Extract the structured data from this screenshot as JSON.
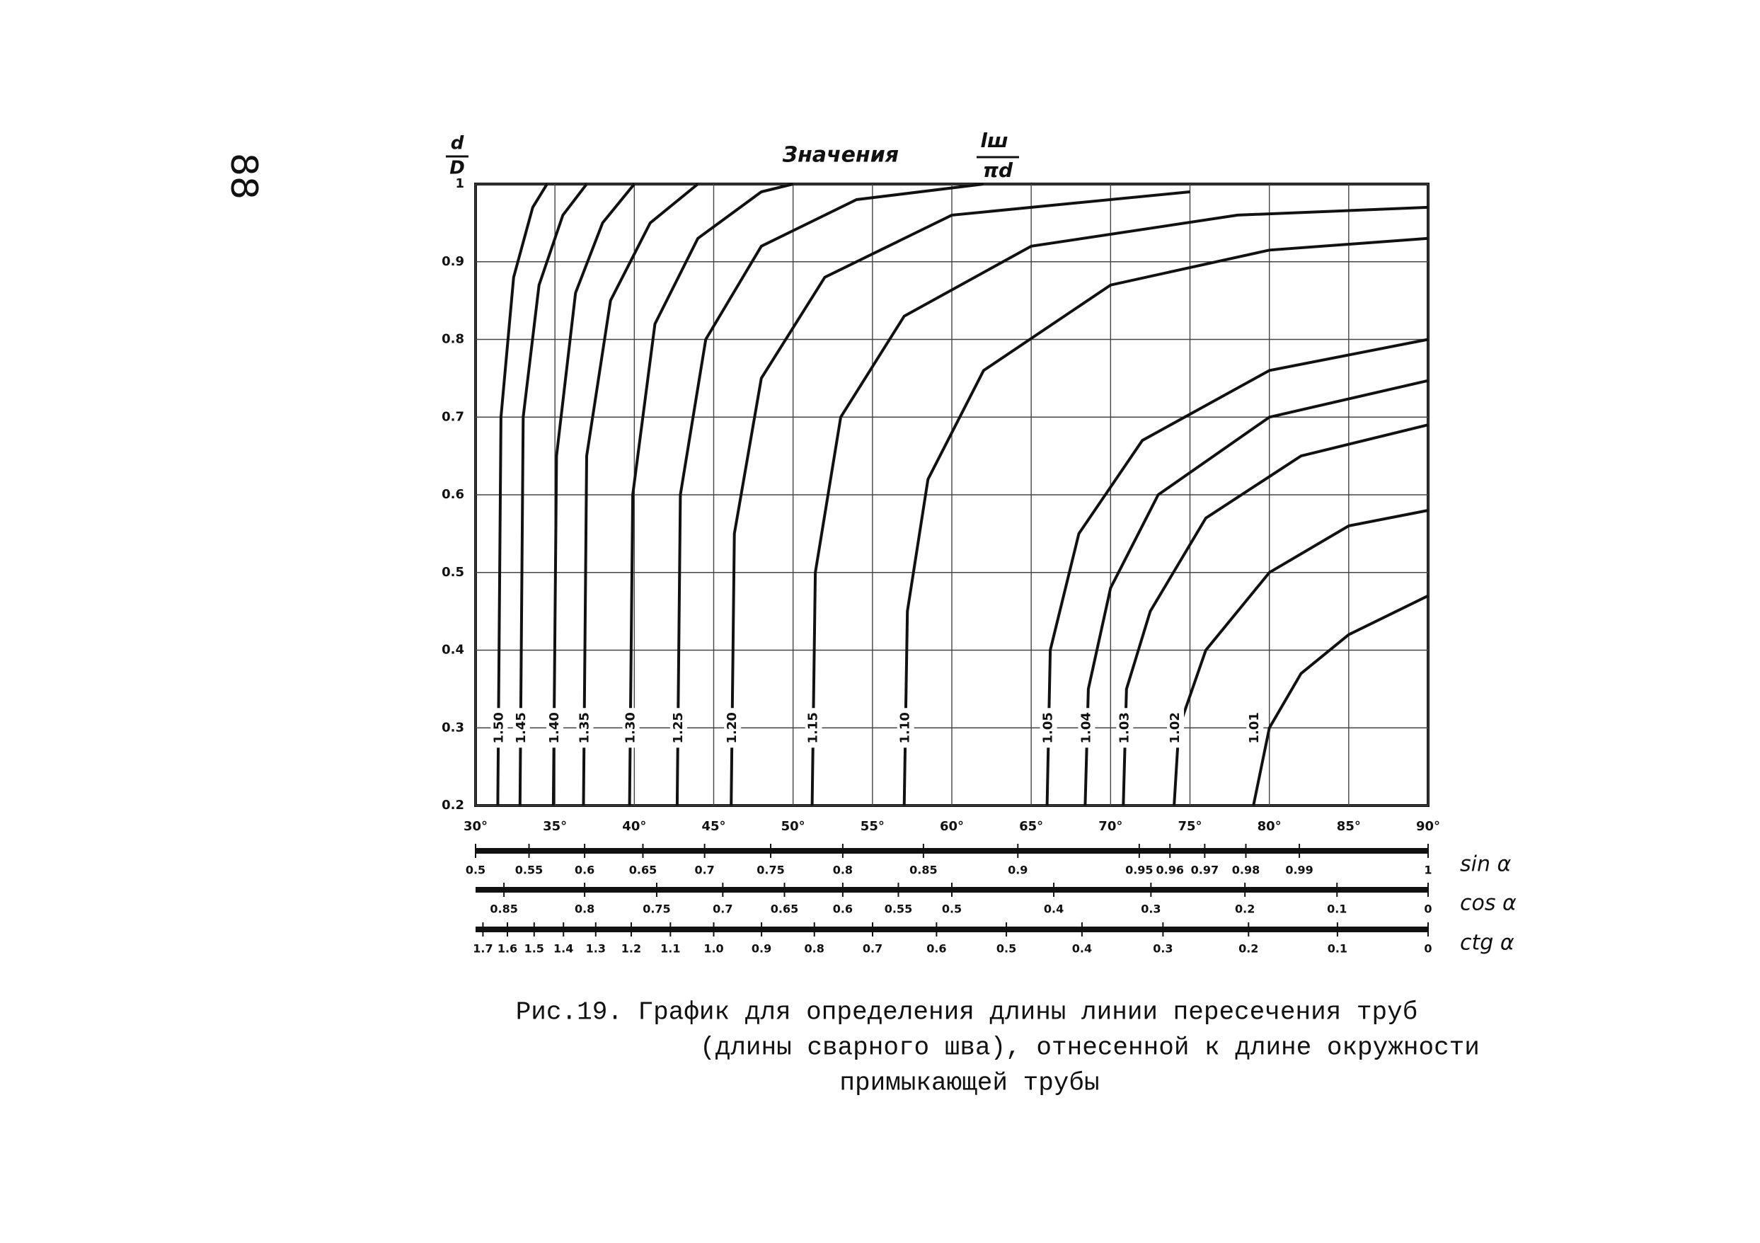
{
  "page_number": "88",
  "chart_data": {
    "type": "line",
    "title": "Значения",
    "title_fraction_top": "lш",
    "title_fraction_bottom": "πd",
    "ylabel_top": "d",
    "ylabel_bottom": "D",
    "xlim": [
      30,
      90
    ],
    "ylim": [
      0.2,
      1
    ],
    "xticks": [
      {
        "value": 30,
        "label": "30°"
      },
      {
        "value": 35,
        "label": "35°"
      },
      {
        "value": 40,
        "label": "40°"
      },
      {
        "value": 45,
        "label": "45°"
      },
      {
        "value": 50,
        "label": "50°"
      },
      {
        "value": 55,
        "label": "55°"
      },
      {
        "value": 60,
        "label": "60°"
      },
      {
        "value": 65,
        "label": "65°"
      },
      {
        "value": 70,
        "label": "70°"
      },
      {
        "value": 75,
        "label": "75°"
      },
      {
        "value": 80,
        "label": "80°"
      },
      {
        "value": 85,
        "label": "85°"
      },
      {
        "value": 90,
        "label": "90°"
      }
    ],
    "yticks": [
      0.2,
      0.3,
      0.4,
      0.5,
      0.6,
      0.7,
      0.8,
      0.9,
      1
    ],
    "grid": true,
    "color": "#111111",
    "series": [
      {
        "name": "1.50",
        "x": [
          31.4,
          31.6,
          32.4,
          33.6,
          34.5
        ],
        "values": [
          0.2,
          0.7,
          0.88,
          0.97,
          1
        ]
      },
      {
        "name": "1.45",
        "x": [
          32.8,
          33,
          34,
          35.5,
          37
        ],
        "values": [
          0.2,
          0.7,
          0.87,
          0.96,
          1
        ]
      },
      {
        "name": "1.40",
        "x": [
          34.9,
          35.1,
          36.3,
          38,
          40
        ],
        "values": [
          0.2,
          0.65,
          0.86,
          0.95,
          1
        ]
      },
      {
        "name": "1.35",
        "x": [
          36.8,
          37,
          38.5,
          41,
          44
        ],
        "values": [
          0.2,
          0.65,
          0.85,
          0.95,
          1
        ]
      },
      {
        "name": "1.30",
        "x": [
          39.7,
          39.9,
          41.3,
          44,
          48,
          50
        ],
        "values": [
          0.2,
          0.6,
          0.82,
          0.93,
          0.99,
          1
        ]
      },
      {
        "name": "1.25",
        "x": [
          42.7,
          42.9,
          44.5,
          48,
          54,
          62
        ],
        "values": [
          0.2,
          0.6,
          0.8,
          0.92,
          0.98,
          1
        ]
      },
      {
        "name": "1.20",
        "x": [
          46.1,
          46.3,
          48,
          52,
          60,
          75
        ],
        "values": [
          0.2,
          0.55,
          0.75,
          0.88,
          0.96,
          0.99
        ]
      },
      {
        "name": "1.15",
        "x": [
          51.2,
          51.4,
          53,
          57,
          65,
          78,
          90
        ],
        "values": [
          0.2,
          0.5,
          0.7,
          0.83,
          0.92,
          0.96,
          0.97
        ]
      },
      {
        "name": "1.10",
        "x": [
          57,
          57.2,
          58.5,
          62,
          70,
          80,
          90
        ],
        "values": [
          0.2,
          0.45,
          0.62,
          0.76,
          0.87,
          0.915,
          0.93
        ]
      },
      {
        "name": "1.05",
        "x": [
          66,
          66.2,
          68,
          72,
          80,
          90
        ],
        "values": [
          0.2,
          0.4,
          0.55,
          0.67,
          0.76,
          0.8
        ]
      },
      {
        "name": "1.04",
        "x": [
          68.4,
          68.6,
          70,
          73,
          80,
          90
        ],
        "values": [
          0.2,
          0.35,
          0.48,
          0.6,
          0.7,
          0.747
        ]
      },
      {
        "name": "1.03",
        "x": [
          70.8,
          71,
          72.5,
          76,
          82,
          90
        ],
        "values": [
          0.2,
          0.35,
          0.45,
          0.57,
          0.65,
          0.69
        ]
      },
      {
        "name": "1.02",
        "x": [
          74,
          74.3,
          76,
          80,
          85,
          90
        ],
        "values": [
          0.2,
          0.3,
          0.4,
          0.5,
          0.56,
          0.58
        ]
      },
      {
        "name": "1.01",
        "x": [
          79,
          80,
          82,
          85,
          90
        ],
        "values": [
          0.2,
          0.3,
          0.37,
          0.42,
          0.47
        ]
      }
    ],
    "scales": [
      {
        "name": "sin α",
        "func": "sin",
        "ticks": [
          0.5,
          0.55,
          0.6,
          0.65,
          0.7,
          0.75,
          0.8,
          0.85,
          0.9,
          0.95,
          0.96,
          0.97,
          0.98,
          0.99,
          1
        ]
      },
      {
        "name": "cos α",
        "func": "cos",
        "ticks": [
          0.85,
          0.8,
          0.75,
          0.7,
          0.65,
          0.6,
          0.55,
          0.5,
          0.4,
          0.3,
          0.2,
          0.1,
          0
        ]
      },
      {
        "name": "ctg α",
        "func": "ctg",
        "ticks": [
          1.7,
          1.6,
          1.5,
          1.4,
          1.3,
          1.2,
          1.1,
          {
            "value": 1,
            "label": "1.0"
          },
          0.9,
          0.8,
          0.7,
          0.6,
          0.5,
          0.4,
          0.3,
          0.2,
          0.1,
          0
        ]
      }
    ],
    "caption": [
      "Рис.19. График для определения длины линии пересечения труб",
      "(длины сварного шва), отнесенной к длине окружности",
      "примыкающей трубы"
    ]
  }
}
